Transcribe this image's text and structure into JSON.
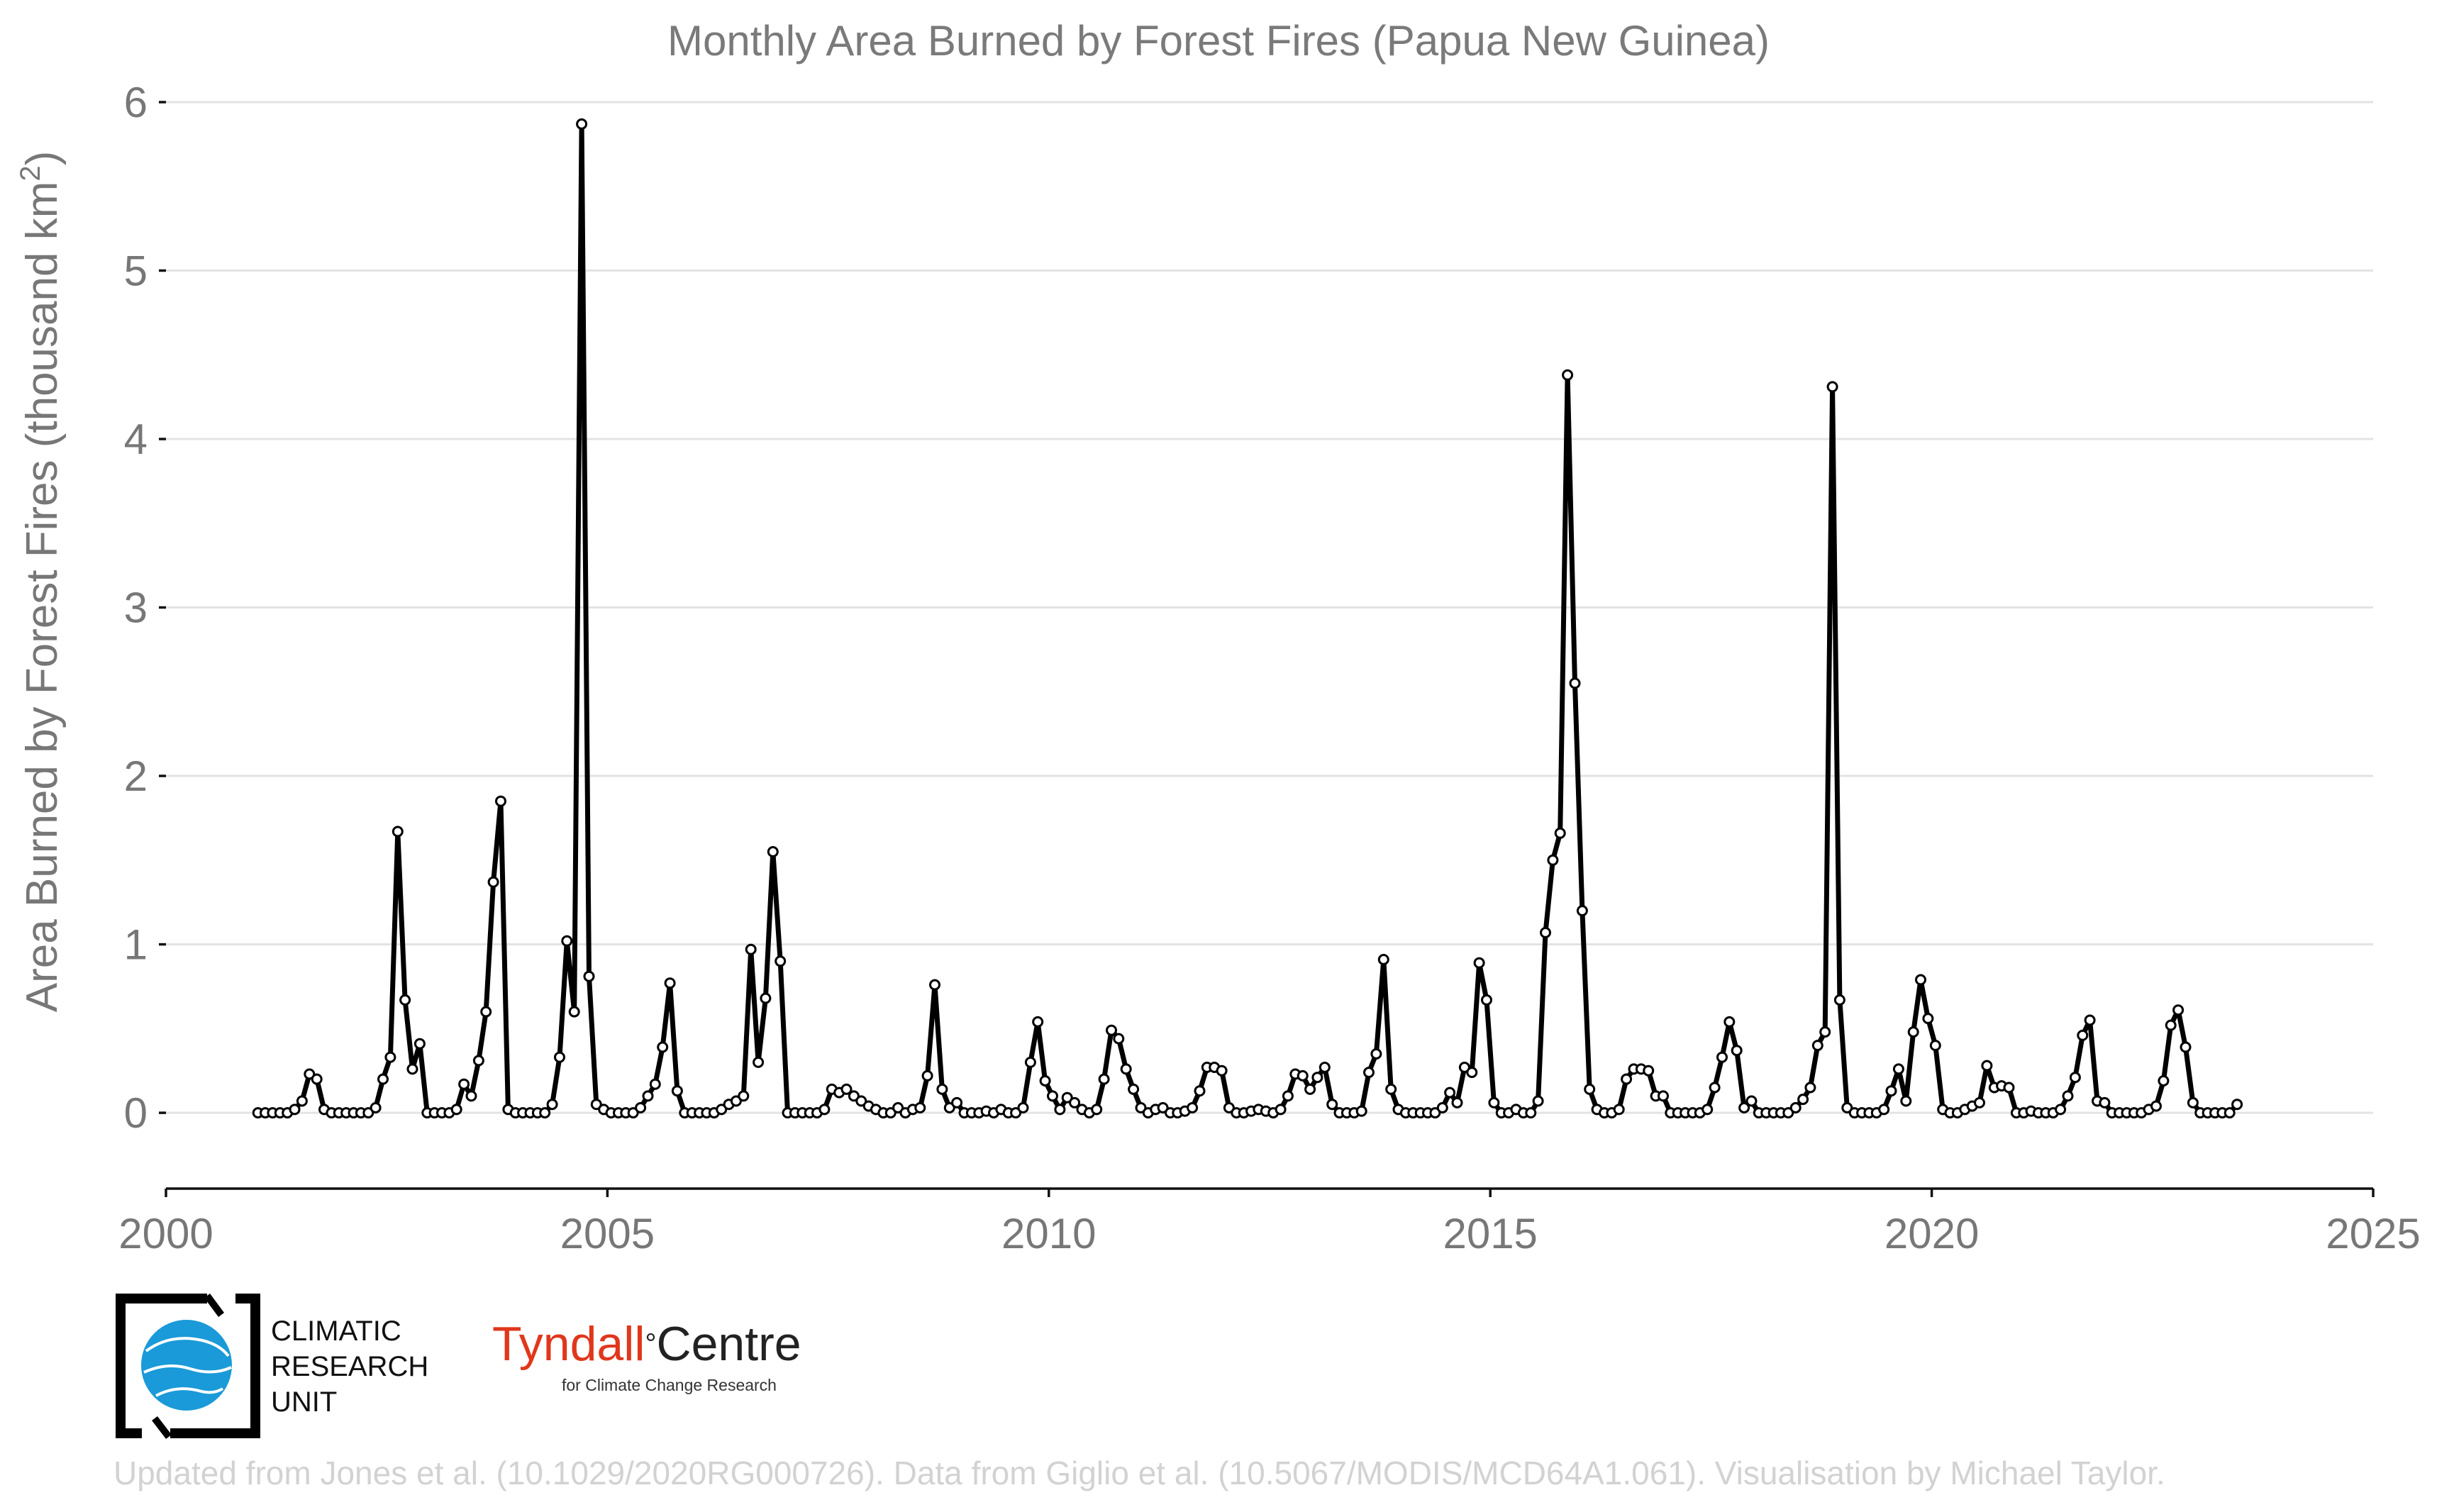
{
  "chart_data": {
    "type": "line",
    "title": "Monthly Area Burned by Forest Fires (Papua New Guinea)",
    "xlabel": "",
    "ylabel_base": "Area Burned by Forest Fires (thousand km",
    "ylabel_sup": "2",
    "ylabel_end": ")",
    "xlim": [
      2000,
      2025
    ],
    "ylim": [
      -0.45,
      6
    ],
    "x_ticks": [
      "2000",
      "2005",
      "2010",
      "2015",
      "2020",
      "2025"
    ],
    "y_ticks": [
      "0",
      "1",
      "2",
      "3",
      "4",
      "5",
      "6"
    ],
    "grid": true,
    "start": "2001-01",
    "frequency": "monthly",
    "series": [
      {
        "name": "Papua New Guinea",
        "values": [
          0,
          0,
          0,
          0,
          0,
          0.02,
          0.07,
          0.23,
          0.2,
          0.02,
          0,
          0,
          0,
          0,
          0,
          0,
          0.03,
          0.2,
          0.33,
          1.67,
          0.67,
          0.26,
          0.41,
          0,
          0,
          0,
          0,
          0.02,
          0.17,
          0.1,
          0.31,
          0.6,
          1.37,
          1.85,
          0.02,
          0,
          0,
          0,
          0,
          0,
          0.05,
          0.33,
          1.02,
          0.6,
          5.87,
          0.81,
          0.05,
          0.02,
          0,
          0,
          0,
          0,
          0.03,
          0.1,
          0.17,
          0.39,
          0.77,
          0.13,
          0,
          0,
          0,
          0,
          0,
          0.02,
          0.05,
          0.07,
          0.1,
          0.97,
          0.3,
          0.68,
          1.55,
          0.9,
          0,
          0,
          0,
          0,
          0,
          0.02,
          0.14,
          0.12,
          0.14,
          0.1,
          0.07,
          0.04,
          0.02,
          0,
          0,
          0.03,
          0,
          0.02,
          0.03,
          0.22,
          0.76,
          0.14,
          0.03,
          0.06,
          0,
          0,
          0,
          0.01,
          0,
          0.02,
          0,
          0,
          0.03,
          0.3,
          0.54,
          0.19,
          0.1,
          0.02,
          0.09,
          0.06,
          0.02,
          0,
          0.02,
          0.2,
          0.49,
          0.44,
          0.26,
          0.14,
          0.03,
          0,
          0.02,
          0.03,
          0,
          0,
          0.01,
          0.03,
          0.13,
          0.27,
          0.27,
          0.25,
          0.03,
          0,
          0,
          0.01,
          0.02,
          0.01,
          0,
          0.02,
          0.1,
          0.23,
          0.22,
          0.14,
          0.21,
          0.27,
          0.05,
          0,
          0,
          0,
          0.01,
          0.24,
          0.35,
          0.91,
          0.14,
          0.02,
          0,
          0,
          0,
          0,
          0,
          0.03,
          0.12,
          0.06,
          0.27,
          0.24,
          0.89,
          0.67,
          0.06,
          0,
          0,
          0.02,
          0,
          0,
          0.07,
          1.07,
          1.5,
          1.66,
          4.38,
          2.55,
          1.2,
          0.14,
          0.02,
          0,
          0,
          0.02,
          0.2,
          0.26,
          0.26,
          0.25,
          0.1,
          0.1,
          0,
          0,
          0,
          0,
          0,
          0.02,
          0.15,
          0.33,
          0.54,
          0.37,
          0.03,
          0.07,
          0,
          0,
          0,
          0,
          0,
          0.03,
          0.08,
          0.15,
          0.4,
          0.48,
          4.31,
          0.67,
          0.03,
          0,
          0,
          0,
          0,
          0.02,
          0.13,
          0.26,
          0.07,
          0.48,
          0.79,
          0.56,
          0.4,
          0.02,
          0,
          0,
          0.02,
          0.04,
          0.06,
          0.28,
          0.15,
          0.16,
          0.15,
          0,
          0,
          0.01,
          0,
          0,
          0,
          0.02,
          0.1,
          0.21,
          0.46,
          0.55,
          0.07,
          0.06,
          0,
          0,
          0,
          0,
          0,
          0.02,
          0.04,
          0.19,
          0.52,
          0.61,
          0.39,
          0.06,
          0,
          0,
          0,
          0,
          0,
          0.05
        ]
      }
    ]
  },
  "logos": {
    "cru_lines": [
      "CLIMATIC",
      "RESEARCH",
      "UNIT"
    ],
    "tyndall_main": "Tyndall",
    "tyndall_degree": "°",
    "tyndall_centre": "Centre",
    "tyndall_sub": "for Climate Change Research"
  },
  "credits": "Updated from Jones et al. (10.1029/2020RG000726). Data from Giglio et al. (10.5067/MODIS/MCD64A1.061). Visualisation by Michael Taylor.",
  "colors": {
    "line": "#000000",
    "marker_fill": "#ffffff",
    "grid": "#e3e3e3",
    "text": "#777777",
    "tyndall_red": "#e0371c",
    "cru_blue": "#1a9ad8"
  }
}
